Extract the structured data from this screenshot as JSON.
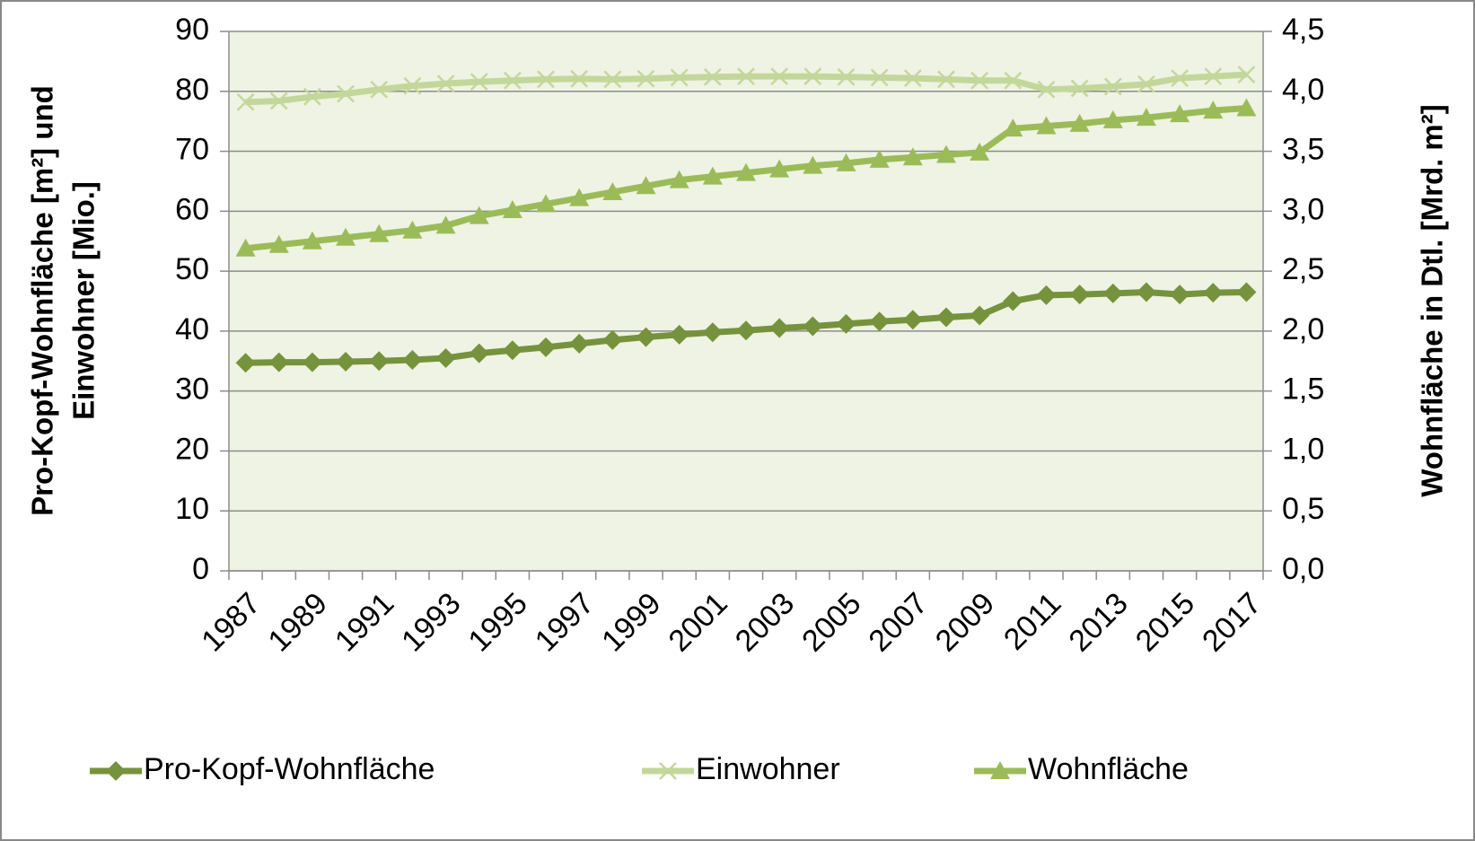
{
  "chart_data": {
    "type": "line",
    "ylabel": [
      "Pro-Kopf-Wohnfläche [m²] und",
      "Einwohner [Mio.]"
    ],
    "y2label": "Wohnfläche in Dtl. [Mrd. m²]",
    "categories": [
      "1987",
      null,
      "1989",
      null,
      "1991",
      null,
      "1993",
      null,
      "1995",
      null,
      "1997",
      null,
      "1999",
      null,
      "2001",
      null,
      "2003",
      null,
      "2005",
      null,
      "2007",
      null,
      "2009",
      null,
      "2011",
      null,
      "2013",
      null,
      "2015",
      null,
      "2017"
    ],
    "ylim": [
      0,
      90
    ],
    "yticks": [
      0,
      10,
      20,
      30,
      40,
      50,
      60,
      70,
      80,
      90
    ],
    "y2lim": [
      0,
      4.5
    ],
    "y2ticks": [
      {
        "value": 0,
        "label": "0,0"
      },
      {
        "value": 0.5,
        "label": "0,5"
      },
      {
        "value": 1,
        "label": "1,0"
      },
      {
        "value": 1.5,
        "label": "1,5"
      },
      {
        "value": 2,
        "label": "2,0"
      },
      {
        "value": 2.5,
        "label": "2,5"
      },
      {
        "value": 3,
        "label": "3,0"
      },
      {
        "value": 3.5,
        "label": "3,5"
      },
      {
        "value": 4,
        "label": "4,0"
      },
      {
        "value": 4.5,
        "label": "4,5"
      }
    ],
    "grid": true,
    "legend": "bottom",
    "series": [
      {
        "name": "Pro-Kopf-Wohnfläche",
        "color": "#76923c",
        "marker": "diamond",
        "values": [
          34.7,
          34.8,
          34.8,
          34.9,
          35.0,
          35.2,
          35.5,
          36.3,
          36.8,
          37.3,
          37.9,
          38.5,
          39.0,
          39.4,
          39.8,
          40.1,
          40.5,
          40.8,
          41.2,
          41.6,
          41.9,
          42.3,
          42.6,
          45.0,
          46.0,
          46.1,
          46.3,
          46.5,
          46.1,
          46.4,
          46.5
        ]
      },
      {
        "name": "Einwohner",
        "color": "#c4d79b",
        "marker": "x",
        "values": [
          78.2,
          78.4,
          79.1,
          79.6,
          80.3,
          80.9,
          81.3,
          81.6,
          81.8,
          82.0,
          82.1,
          82.0,
          82.1,
          82.3,
          82.4,
          82.5,
          82.5,
          82.5,
          82.4,
          82.3,
          82.2,
          82.0,
          81.8,
          81.8,
          80.3,
          80.5,
          80.8,
          81.2,
          82.2,
          82.5,
          82.8
        ]
      },
      {
        "name": "Wohnfläche",
        "color": "#9bbb59",
        "marker": "triangle",
        "axis": "y2",
        "values": [
          2.69,
          2.72,
          2.75,
          2.78,
          2.81,
          2.84,
          2.88,
          2.96,
          3.01,
          3.06,
          3.11,
          3.16,
          3.21,
          3.26,
          3.29,
          3.32,
          3.35,
          3.38,
          3.4,
          3.43,
          3.45,
          3.47,
          3.49,
          3.69,
          3.71,
          3.73,
          3.76,
          3.78,
          3.81,
          3.84,
          3.86
        ]
      }
    ]
  }
}
